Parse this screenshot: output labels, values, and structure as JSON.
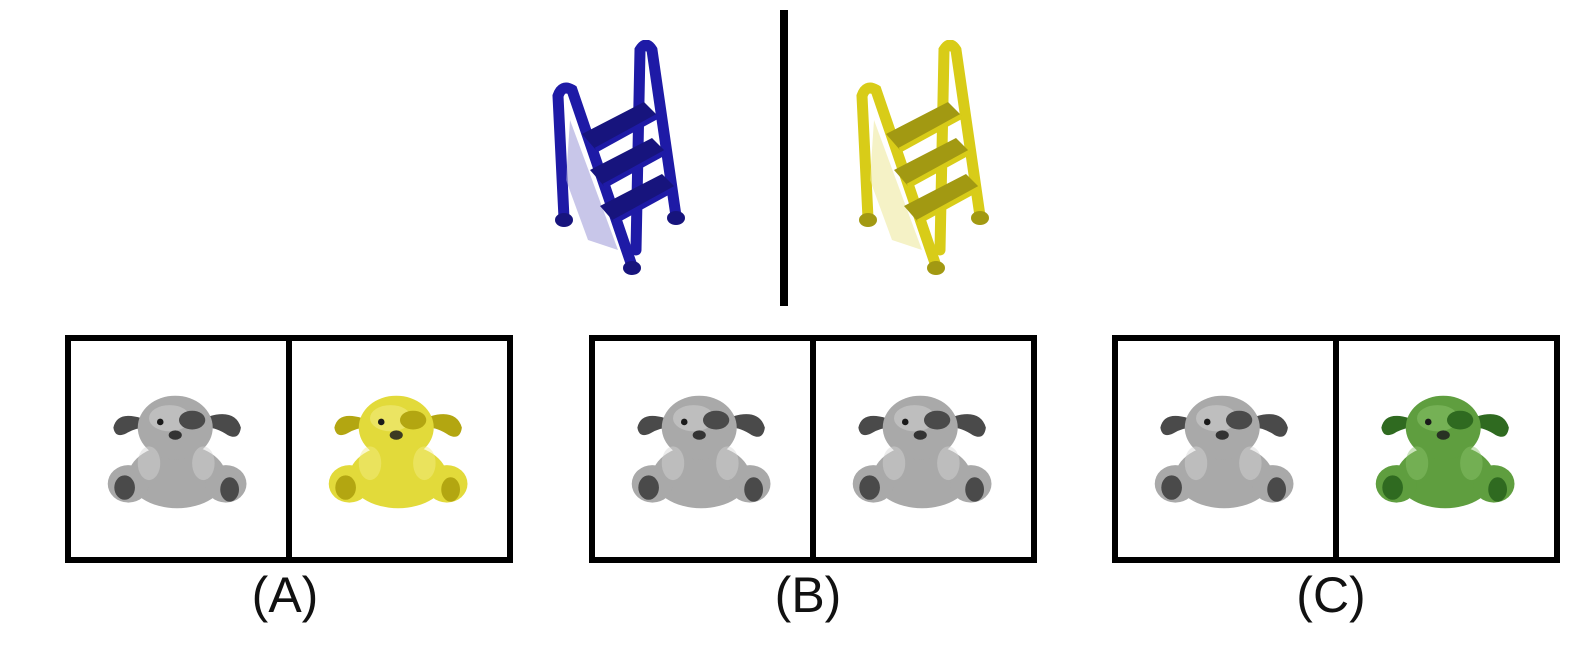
{
  "prompt": {
    "left_item": {
      "icon": "step-ladder-icon",
      "color": "#1e1aa6"
    },
    "right_item": {
      "icon": "step-ladder-icon",
      "color": "#d8cc18"
    }
  },
  "options": [
    {
      "label": "(A)",
      "left": {
        "icon": "plush-dog-icon",
        "tint": "gray"
      },
      "right": {
        "icon": "plush-dog-icon",
        "tint": "yellow"
      }
    },
    {
      "label": "(B)",
      "left": {
        "icon": "plush-dog-icon",
        "tint": "gray"
      },
      "right": {
        "icon": "plush-dog-icon",
        "tint": "gray"
      }
    },
    {
      "label": "(C)",
      "left": {
        "icon": "plush-dog-icon",
        "tint": "gray"
      },
      "right": {
        "icon": "plush-dog-icon",
        "tint": "green"
      }
    }
  ],
  "tints": {
    "gray": {
      "main": "#a9a9a9",
      "dark": "#4a4a4a",
      "light": "#d4d4d4"
    },
    "yellow": {
      "main": "#e2da3a",
      "dark": "#b3a611",
      "light": "#f4ee8a"
    },
    "green": {
      "main": "#5f9e3f",
      "dark": "#2f6a20",
      "light": "#8cc46c"
    }
  }
}
